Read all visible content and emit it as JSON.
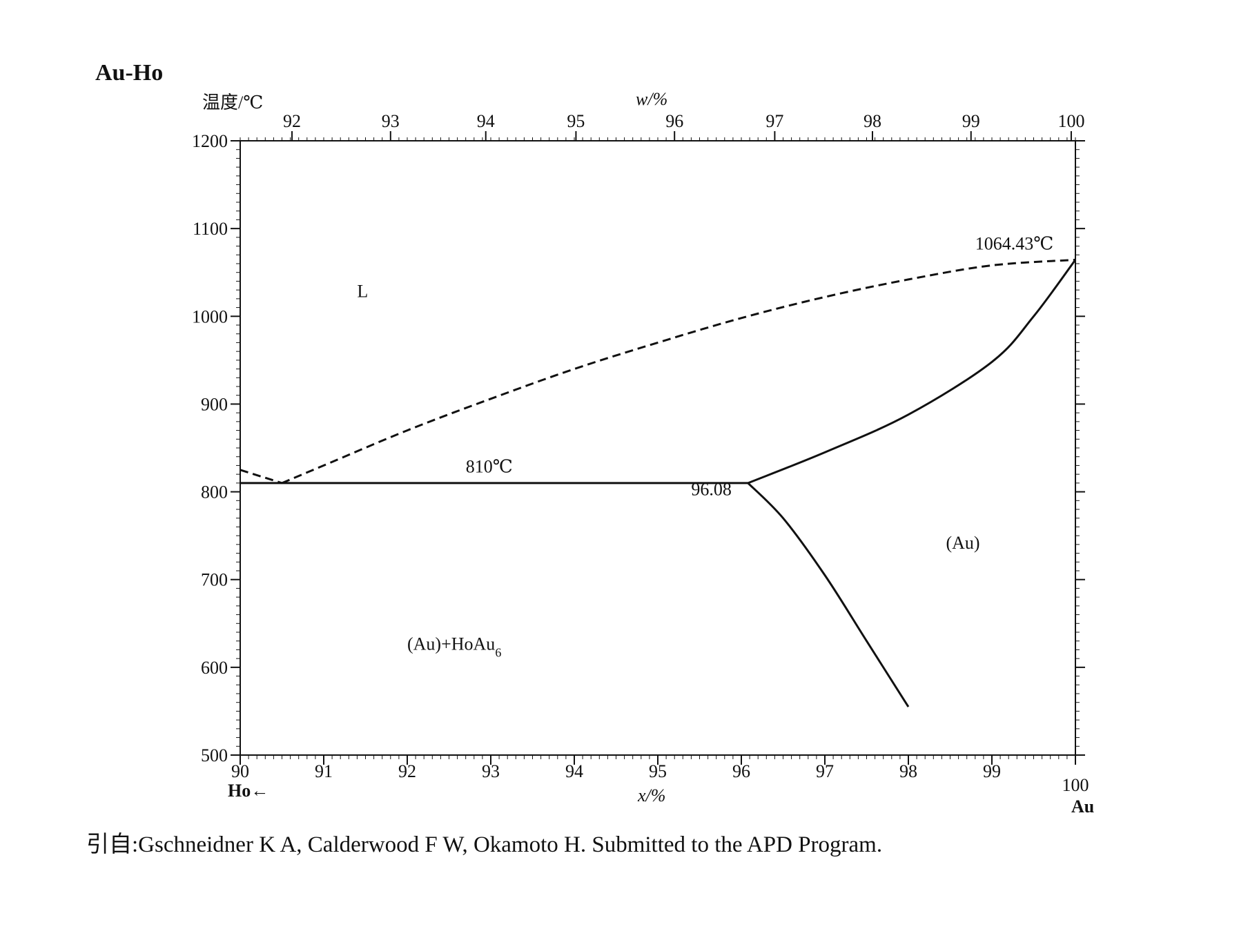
{
  "chart_data": {
    "type": "line",
    "title": "Au-Ho",
    "ylabel": "温度/℃",
    "xlabel": "x/%",
    "x2label": "w/%",
    "xlim": [
      90,
      100
    ],
    "ylim": [
      500,
      1200
    ],
    "x_ticks": [
      "90",
      "91",
      "92",
      "93",
      "94",
      "95",
      "96",
      "97",
      "98",
      "99",
      "100"
    ],
    "y_ticks": [
      "500",
      "600",
      "700",
      "800",
      "900",
      "1000",
      "1100",
      "1200"
    ],
    "top_ticks": [
      {
        "label": "92",
        "x": 90.62
      },
      {
        "label": "93",
        "x": 91.8
      },
      {
        "label": "94",
        "x": 92.94
      },
      {
        "label": "95",
        "x": 94.02
      },
      {
        "label": "96",
        "x": 95.2
      },
      {
        "label": "97",
        "x": 96.4
      },
      {
        "label": "98",
        "x": 97.57
      },
      {
        "label": "99",
        "x": 98.75
      },
      {
        "label": "100",
        "x": 99.95
      }
    ],
    "left_end_label": "Ho←",
    "right_end_label": "Au",
    "series": [
      {
        "style": "dashed",
        "points": [
          [
            90.0,
            825
          ],
          [
            90.5,
            810
          ]
        ]
      },
      {
        "style": "dashed",
        "points": [
          [
            90.5,
            810
          ],
          [
            91.0,
            830
          ],
          [
            92.0,
            870
          ],
          [
            93.0,
            906
          ],
          [
            94.0,
            940
          ],
          [
            95.0,
            970
          ],
          [
            96.0,
            998
          ],
          [
            97.0,
            1022
          ],
          [
            98.0,
            1042
          ],
          [
            99.0,
            1058
          ],
          [
            100.0,
            1064.43
          ]
        ]
      },
      {
        "style": "solid",
        "points": [
          [
            90.0,
            810
          ],
          [
            96.08,
            810
          ]
        ]
      },
      {
        "style": "solid",
        "points": [
          [
            96.08,
            810
          ],
          [
            97.0,
            845
          ],
          [
            98.0,
            888
          ],
          [
            99.0,
            948
          ],
          [
            99.5,
            1000
          ],
          [
            100.0,
            1064.43
          ]
        ]
      },
      {
        "style": "solid",
        "points": [
          [
            96.08,
            810
          ],
          [
            96.5,
            770
          ],
          [
            97.0,
            705
          ],
          [
            97.5,
            630
          ],
          [
            98.0,
            555
          ]
        ]
      }
    ],
    "annotations": [
      {
        "id": "L",
        "text": "L",
        "x": 91.4,
        "y": 1022
      },
      {
        "id": "t810",
        "text": "810℃",
        "x": 92.7,
        "y": 822
      },
      {
        "id": "e9608",
        "text": "96.08",
        "x": 95.4,
        "y": 796
      },
      {
        "id": "au",
        "text": "(Au)",
        "x": 98.45,
        "y": 735
      },
      {
        "id": "mp",
        "text": "1064.43℃",
        "x": 98.8,
        "y": 1076
      },
      {
        "id": "twophase",
        "text": "(Au)+HoAu",
        "sub": "6",
        "x": 92.0,
        "y": 620
      }
    ]
  },
  "source": "引自:Gschneidner K A, Calderwood F W, Okamoto H. Submitted to the APD Program."
}
